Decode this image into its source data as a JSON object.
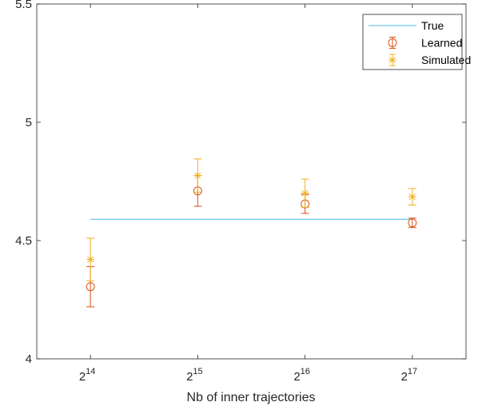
{
  "chart_data": {
    "type": "scatter",
    "xlabel": "Nb of inner trajectories",
    "ylabel": "",
    "title": "",
    "x_categories": [
      {
        "base": "2",
        "exp": "14"
      },
      {
        "base": "2",
        "exp": "15"
      },
      {
        "base": "2",
        "exp": "16"
      },
      {
        "base": "2",
        "exp": "17"
      }
    ],
    "xlim": [
      0.5,
      4.5
    ],
    "ylim": [
      4,
      5.5
    ],
    "yticks": [
      "4",
      "4.5",
      "5",
      "5.5"
    ],
    "ytick_values": [
      4,
      4.5,
      5,
      5.5
    ],
    "grid": false,
    "legend_position": "top-right",
    "series": [
      {
        "name": "True",
        "style": "line",
        "color": "#4DBEEE",
        "line": {
          "x_start": 1,
          "x_end": 4,
          "y": 4.59
        }
      },
      {
        "name": "Learned",
        "style": "circle-errorbar",
        "color": "#D95319",
        "points": [
          {
            "x": 1,
            "y": 4.305,
            "low": 4.22,
            "high": 4.39
          },
          {
            "x": 2,
            "y": 4.71,
            "low": 4.645,
            "high": 4.775
          },
          {
            "x": 3,
            "y": 4.655,
            "low": 4.615,
            "high": 4.695
          },
          {
            "x": 4,
            "y": 4.575,
            "low": 4.555,
            "high": 4.595
          }
        ]
      },
      {
        "name": "Simulated",
        "style": "star-errorbar",
        "color": "#EDB120",
        "points": [
          {
            "x": 1,
            "y": 4.42,
            "low": 4.33,
            "high": 4.51
          },
          {
            "x": 2,
            "y": 4.775,
            "low": 4.705,
            "high": 4.845
          },
          {
            "x": 3,
            "y": 4.7,
            "low": 4.64,
            "high": 4.76
          },
          {
            "x": 4,
            "y": 4.685,
            "low": 4.65,
            "high": 4.72
          }
        ]
      }
    ]
  }
}
